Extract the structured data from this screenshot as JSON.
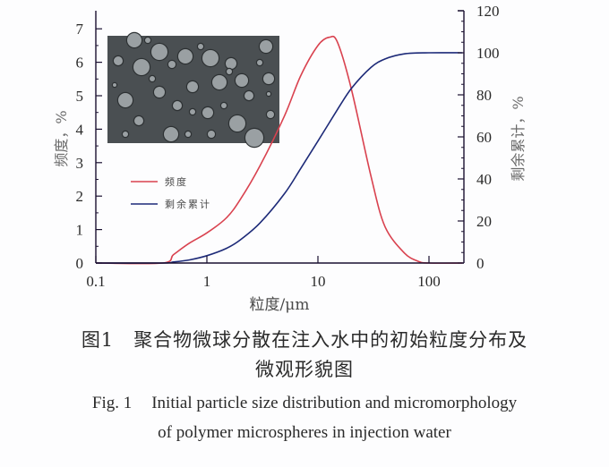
{
  "figure": {
    "caption_cn_line1_label": "图1",
    "caption_cn_line1_text": "聚合物微球分散在注入水中的初始粒度分布及",
    "caption_cn_line2": "微观形貌图",
    "caption_en_line1_label": "Fig. 1",
    "caption_en_line1_text": "Initial particle size distribution and micromorphology",
    "caption_en_line2": "of polymer microspheres in injection water"
  },
  "axes": {
    "xlabel": "粒度/μm",
    "ylabel_left": "频度，%",
    "ylabel_right": "剩余累计，%",
    "x_ticks": [
      "0.1",
      "1",
      "10",
      "100"
    ],
    "y_left_ticks": [
      "0",
      "1",
      "2",
      "3",
      "4",
      "5",
      "6",
      "7"
    ],
    "y_right_ticks": [
      "0",
      "20",
      "40",
      "60",
      "80",
      "100",
      "120"
    ]
  },
  "legend": {
    "items": [
      {
        "label": "频度",
        "color": "#d9424f"
      },
      {
        "label": "剩余累计",
        "color": "#1d2a78"
      }
    ]
  },
  "inset": {
    "description": "micrograph of polymer microspheres (gray background with round particles)"
  },
  "colors": {
    "frequency": "#d9424f",
    "cumulative": "#1d2a78",
    "axis": "#1a1030",
    "inset_bg": "#4a4f52"
  },
  "chart_data": {
    "type": "line",
    "title": "",
    "xlabel": "粒度/μm",
    "ylabel": "频度，%",
    "ylabel_right": "剩余累计，%",
    "x_scale": "log",
    "xlim": [
      0.1,
      200
    ],
    "ylim": [
      0,
      7.5
    ],
    "ylim_right": [
      0,
      120
    ],
    "grid": false,
    "legend_position": "inside-left",
    "series": [
      {
        "name": "频度",
        "axis": "left",
        "x": [
          0.1,
          0.4,
          0.5,
          0.7,
          1.0,
          1.5,
          2.0,
          3.0,
          5.0,
          7.0,
          10.0,
          12.7,
          15.0,
          20.0,
          30.0,
          40.0,
          60.0,
          80.0,
          100.0,
          200.0
        ],
        "values": [
          0,
          0,
          0.25,
          0.6,
          0.9,
          1.35,
          1.9,
          2.9,
          4.4,
          5.6,
          6.5,
          6.75,
          6.6,
          5.2,
          2.6,
          1.1,
          0.3,
          0.05,
          0,
          0
        ]
      },
      {
        "name": "剩余累计",
        "axis": "right",
        "x": [
          0.1,
          0.4,
          0.5,
          0.7,
          1.0,
          1.5,
          2.0,
          3.0,
          5.0,
          7.0,
          10.0,
          15.0,
          20.0,
          30.0,
          40.0,
          60.0,
          100.0,
          200.0
        ],
        "values": [
          0,
          0,
          0.5,
          1.5,
          3.5,
          7,
          11,
          19,
          33,
          45,
          58,
          73,
          83,
          93,
          97,
          99.5,
          100,
          100
        ]
      }
    ]
  }
}
